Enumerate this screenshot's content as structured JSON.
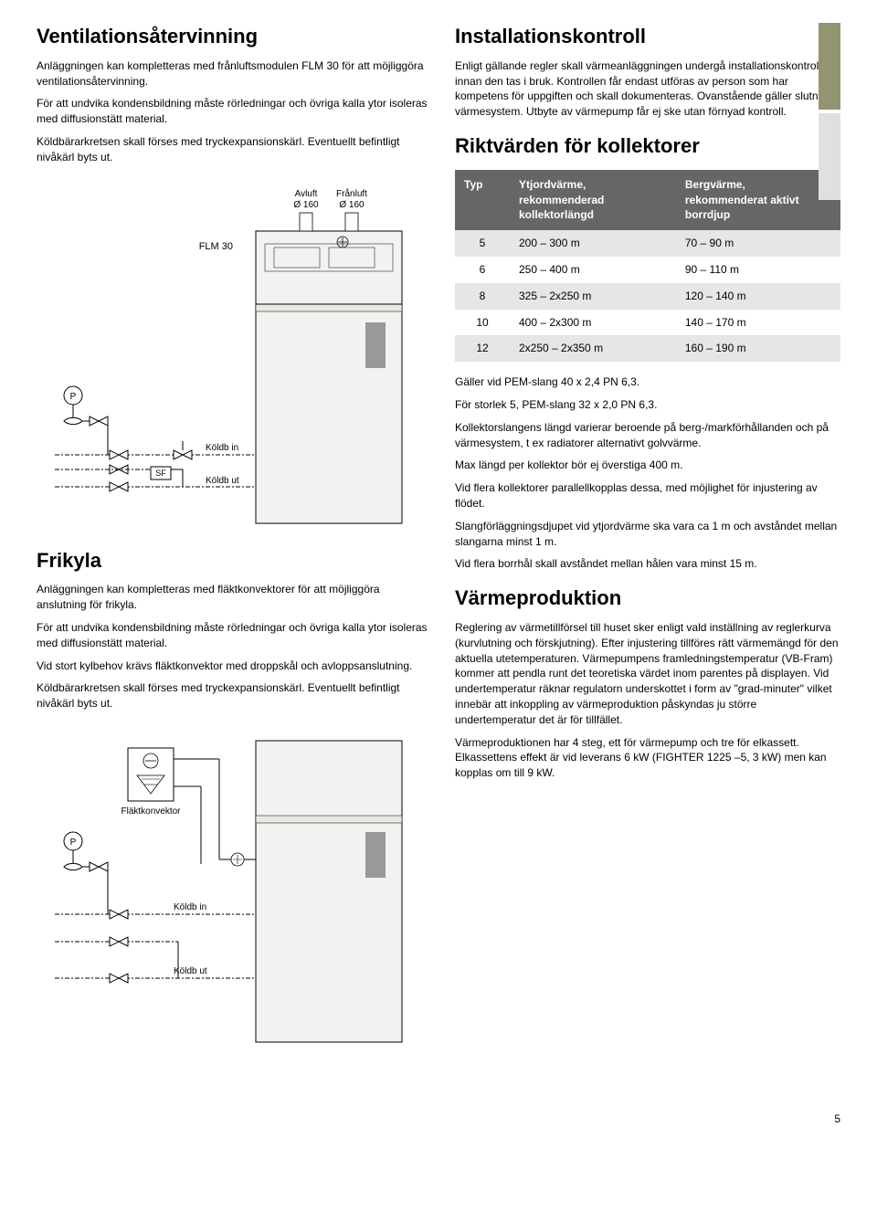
{
  "left": {
    "h1": "Ventilationsåtervinning",
    "p1": "Anläggningen kan kompletteras med frånluftsmodulen FLM 30 för att möjliggöra ventilationsåtervinning.",
    "p2": "För att undvika kondensbildning måste rörledningar och övriga kalla ytor isoleras med diffusionstätt material.",
    "p3": "Köldbärarkretsen skall förses med tryckexpansionskärl. Eventuellt befintligt nivåkärl byts ut.",
    "diagram1": {
      "avluft_label": "Avluft",
      "avluft_dia": "Ø 160",
      "franluft_label": "Frånluft",
      "franluft_dia": "Ø 160",
      "flm_label": "FLM 30",
      "p_label": "P",
      "koldb_in": "Köldb in",
      "sf_label": "SF",
      "koldb_ut": "Köldb ut",
      "stroke": "#000000",
      "fill_light": "#f2f2f0",
      "fill_gray": "#999999"
    },
    "h2_frikyla": "Frikyla",
    "p4": "Anläggningen kan kompletteras med fläktkonvektorer för att möjliggöra anslutning för frikyla.",
    "p5": "För att undvika kondensbildning måste rörledningar och övriga kalla ytor isoleras med diffusionstätt material.",
    "p6": "Vid stort kylbehov krävs fläktkonvektor med droppskål och avloppsanslutning.",
    "p7": "Köldbärarkretsen skall förses med tryckexpansionskärl. Eventuellt befintligt nivåkärl byts ut.",
    "diagram2": {
      "flaktkonvektor": "Fläktkonvektor",
      "p_label": "P",
      "koldb_in": "Köldb in",
      "koldb_ut": "Köldb ut",
      "stroke": "#000000",
      "fill_light": "#f2f2f0",
      "fill_gray": "#999999"
    }
  },
  "right": {
    "h1_install": "Installationskontroll",
    "p_install": "Enligt gällande regler skall värmeanläggningen undergå installationskontroll innan den tas i bruk. Kontrollen får endast utföras av person som har kompetens för uppgiften och skall dokumenteras. Ovanstående gäller slutna värmesystem. Utbyte av värmepump får ej ske utan förnyad kontroll.",
    "h1_rikt": "Riktvärden för kollektorer",
    "table": {
      "header_bg": "#666666",
      "row_even_bg": "#ffffff",
      "row_odd_bg": "#e6e6e6",
      "text_color": "#000000",
      "cols": [
        {
          "label": "Typ",
          "sub": ""
        },
        {
          "label": "Ytjordvärme,",
          "sub": "rekommenderad kollektorlängd"
        },
        {
          "label": "Bergvärme,",
          "sub": "rekommenderat aktivt borrdjup"
        }
      ],
      "rows": [
        [
          "5",
          "200 – 300 m",
          "70 – 90 m"
        ],
        [
          "6",
          "250 – 400 m",
          "90 – 110 m"
        ],
        [
          "8",
          "325 – 2x250 m",
          "120 – 140 m"
        ],
        [
          "10",
          "400 – 2x300 m",
          "140 – 170 m"
        ],
        [
          "12",
          "2x250 – 2x350 m",
          "160 – 190 m"
        ]
      ]
    },
    "p_g1": "Gäller vid PEM-slang 40 x 2,4 PN 6,3.",
    "p_g2": "För storlek 5, PEM-slang 32 x 2,0 PN 6,3.",
    "p_g3": "Kollektorslangens längd varierar beroende på berg-/markförhållanden och på värmesystem, t ex radiatorer alternativt golvvärme.",
    "p_g4": "Max längd per kollektor bör ej överstiga 400 m.",
    "p_g5": "Vid flera kollektorer parallellkopplas dessa, med möjlighet för injustering av flödet.",
    "p_g6": "Slangförläggningsdjupet vid ytjordvärme ska vara ca 1 m och avståndet mellan slangarna minst 1 m.",
    "p_g7": "Vid flera borrhål skall avståndet mellan hålen vara minst 15 m.",
    "h1_varme": "Värmeproduktion",
    "p_v1": "Reglering av värmetillförsel till huset sker enligt vald inställning av reglerkurva (kurvlutning och förskjutning). Efter injustering tillföres rätt värmemängd för den aktuella utetemperaturen. Värmepumpens framledningstemperatur (VB-Fram) kommer att pendla runt det teoretiska värdet inom parentes på displayen. Vid undertemperatur räknar regulatorn underskottet i form av \"grad-minuter\" vilket innebär att inkoppling av värmeproduktion påskyndas ju större undertemperatur det är för tillfället.",
    "p_v2": "Värmeproduktionen har 4  steg, ett för värmepump och tre för elkassett. Elkassettens effekt är vid leverans 6 kW (FIGHTER 1225 –5, 3 kW) men kan kopplas om till 9 kW."
  },
  "tabs": {
    "color1": "#939571",
    "color2": "#e0e0e0"
  },
  "page_num": "5"
}
